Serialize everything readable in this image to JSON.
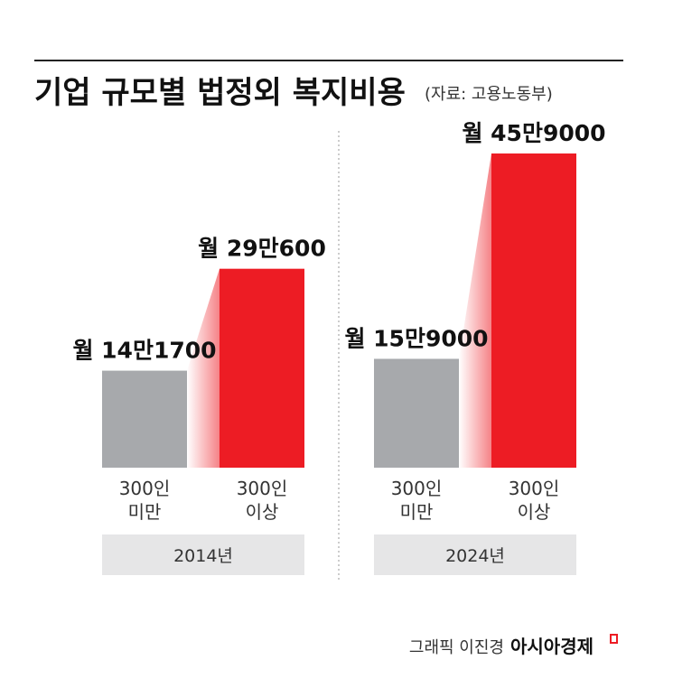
{
  "title": "기업 규모별 법정외 복지비용",
  "source": "(자료: 고용노동부)",
  "credit": "그래픽 이진경",
  "brand": "아시아경제",
  "chart_data": [
    {
      "type": "bar",
      "group_label": "2014년",
      "categories": [
        "300인\n미만",
        "300인\n이상"
      ],
      "values": [
        141700,
        290600
      ],
      "value_labels": [
        "월 14만1700",
        "월 29만600"
      ],
      "colors": [
        "#a7a9ac",
        "#ed1c24"
      ]
    },
    {
      "type": "bar",
      "group_label": "2024년",
      "categories": [
        "300인\n미만",
        "300인\n이상"
      ],
      "values": [
        159000,
        459000
      ],
      "value_labels": [
        "월 15만9000",
        "월 45만9000"
      ],
      "colors": [
        "#a7a9ac",
        "#ed1c24"
      ]
    }
  ]
}
